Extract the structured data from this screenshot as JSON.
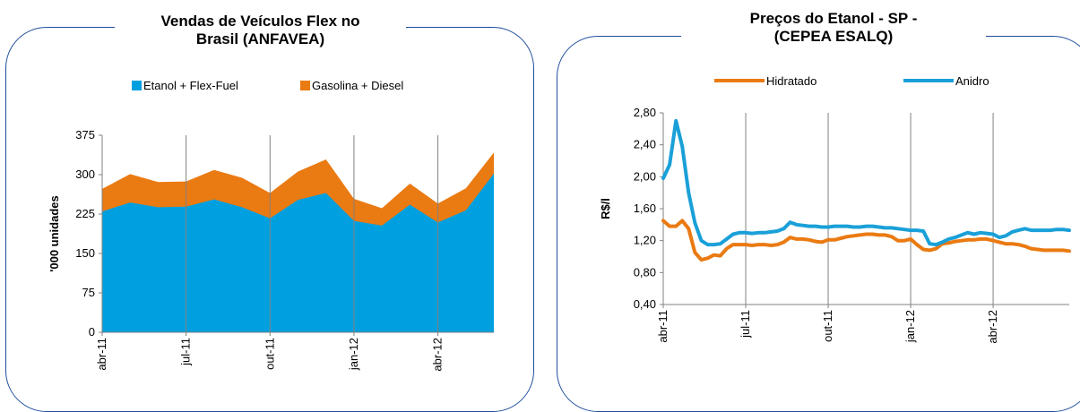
{
  "chart_data": [
    {
      "type": "area",
      "title_lines": [
        "Vendas de Veículos Flex no",
        "Brasil (ANFAVEA)"
      ],
      "ylabel": "'000 unidades",
      "ylim": [
        0,
        375
      ],
      "yticks": [
        "0",
        "75",
        "150",
        "225",
        "300",
        "375"
      ],
      "ytick_values": [
        0,
        75,
        150,
        225,
        300,
        375
      ],
      "x_tick_labels": [
        "abr-11",
        "jul-11",
        "out-11",
        "jan-12",
        "abr-12"
      ],
      "x_tick_index": [
        0,
        3,
        6,
        9,
        12
      ],
      "categories": [
        "abr-11",
        "mai-11",
        "jun-11",
        "jul-11",
        "ago-11",
        "set-11",
        "out-11",
        "nov-11",
        "dez-11",
        "jan-12",
        "fev-12",
        "mar-12",
        "abr-12",
        "mai-12",
        "jun-12"
      ],
      "grid": "vertical",
      "legend_position": "top",
      "series": [
        {
          "name": "Etanol + Flex-Fuel",
          "color": "#00a0e0",
          "values": [
            230,
            247,
            238,
            239,
            253,
            238,
            217,
            252,
            265,
            212,
            203,
            243,
            209,
            232,
            302
          ]
        },
        {
          "name": "Gasolina + Diesel",
          "color": "#ea7a12",
          "values": [
            43,
            54,
            48,
            48,
            56,
            56,
            48,
            54,
            64,
            42,
            33,
            40,
            36,
            42,
            40
          ]
        }
      ]
    },
    {
      "type": "line",
      "title_lines": [
        "Preços do Etanol - SP -",
        "(CEPEA ESALQ)"
      ],
      "ylabel": "R$/l",
      "ylim": [
        0.4,
        2.8
      ],
      "yticks": [
        "0,40",
        "0,80",
        "1,20",
        "1,60",
        "2,00",
        "2,40",
        "2,80"
      ],
      "ytick_values": [
        0.4,
        0.8,
        1.2,
        1.6,
        2.0,
        2.4,
        2.8
      ],
      "x_tick_labels": [
        "abr-11",
        "jul-11",
        "out-11",
        "jan-12",
        "abr-12"
      ],
      "x_tick_index": [
        0,
        13,
        26,
        39,
        52
      ],
      "grid": "vertical",
      "legend_position": "top",
      "series": [
        {
          "name": "Hidratado",
          "color": "#ea7a12",
          "values": [
            1.45,
            1.38,
            1.38,
            1.45,
            1.35,
            1.05,
            0.96,
            0.98,
            1.02,
            1.01,
            1.1,
            1.15,
            1.15,
            1.15,
            1.14,
            1.15,
            1.15,
            1.14,
            1.15,
            1.18,
            1.24,
            1.22,
            1.22,
            1.21,
            1.19,
            1.18,
            1.21,
            1.21,
            1.23,
            1.25,
            1.26,
            1.27,
            1.28,
            1.28,
            1.27,
            1.27,
            1.25,
            1.2,
            1.2,
            1.22,
            1.15,
            1.09,
            1.08,
            1.1,
            1.16,
            1.17,
            1.19,
            1.2,
            1.21,
            1.21,
            1.22,
            1.22,
            1.2,
            1.18,
            1.16,
            1.16,
            1.15,
            1.13,
            1.1,
            1.09,
            1.08,
            1.08,
            1.08,
            1.08,
            1.07
          ]
        },
        {
          "name": "Anidro",
          "color": "#1aa0d8",
          "values": [
            1.98,
            2.15,
            2.7,
            2.38,
            1.8,
            1.42,
            1.2,
            1.15,
            1.15,
            1.16,
            1.22,
            1.28,
            1.3,
            1.3,
            1.29,
            1.3,
            1.3,
            1.31,
            1.32,
            1.35,
            1.43,
            1.4,
            1.39,
            1.38,
            1.38,
            1.37,
            1.37,
            1.38,
            1.38,
            1.38,
            1.37,
            1.37,
            1.38,
            1.38,
            1.37,
            1.36,
            1.36,
            1.35,
            1.34,
            1.33,
            1.33,
            1.32,
            1.16,
            1.15,
            1.18,
            1.22,
            1.24,
            1.27,
            1.3,
            1.28,
            1.3,
            1.29,
            1.28,
            1.24,
            1.26,
            1.31,
            1.33,
            1.35,
            1.33,
            1.33,
            1.33,
            1.33,
            1.34,
            1.34,
            1.33
          ]
        }
      ]
    }
  ]
}
